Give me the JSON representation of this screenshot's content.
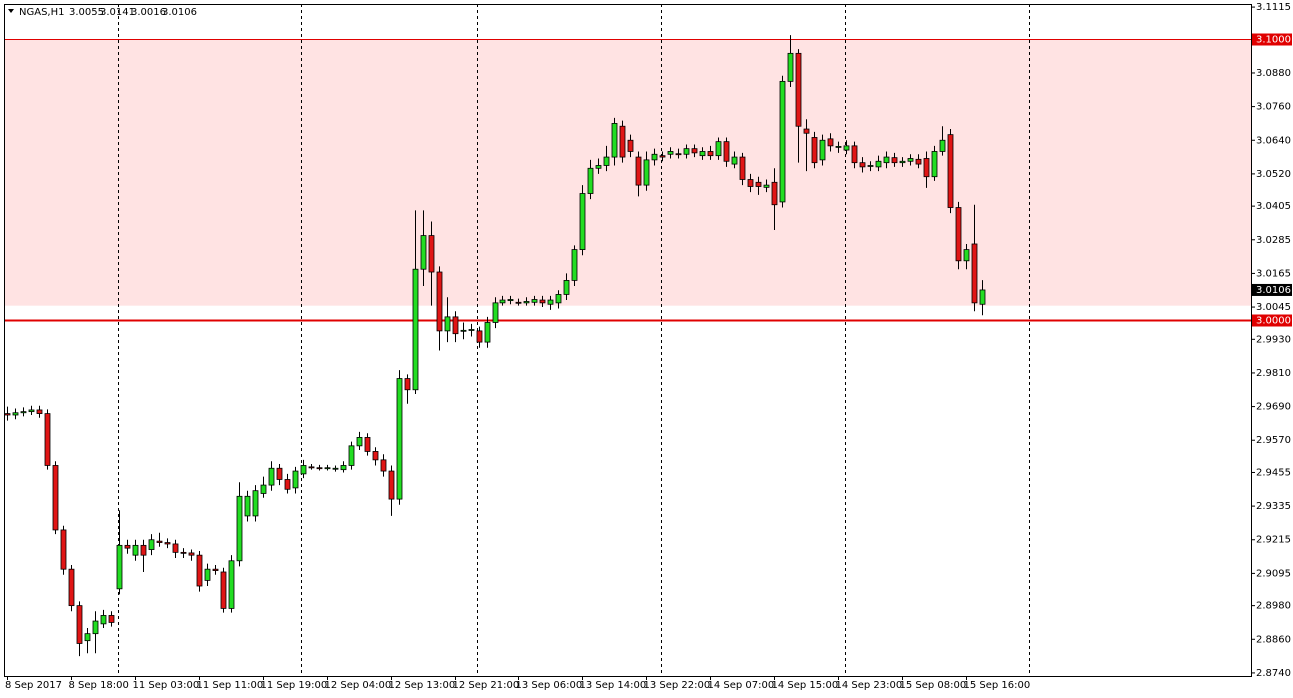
{
  "chart_data": {
    "type": "candlestick",
    "title": "NGAS,H1",
    "up_color": "#22dd22",
    "down_color": "#e01515",
    "zone_color": "#ffe3e3",
    "level_color": "#e00000",
    "ylim": [
      2.8729,
      3.1126
    ],
    "yticks": [
      3.1115,
      {
        "value": 3.088,
        "label": "3.0880"
      },
      {
        "value": 3.076,
        "label": "3.0760"
      },
      {
        "value": 3.064,
        "label": "3.0640"
      },
      {
        "value": 3.052,
        "label": "3.0520"
      },
      3.0405,
      3.0285,
      3.0165,
      3.0045,
      {
        "value": 2.993,
        "label": "2.9930"
      },
      {
        "value": 2.981,
        "label": "2.9810"
      },
      {
        "value": 2.969,
        "label": "2.9690"
      },
      {
        "value": 2.957,
        "label": "2.9570"
      },
      2.9455,
      2.9335,
      2.9215,
      2.9095,
      {
        "value": 2.898,
        "label": "2.8980"
      },
      {
        "value": 2.886,
        "label": "2.8860"
      },
      {
        "value": 2.874,
        "label": "2.8740"
      }
    ],
    "zone": [
      3.005,
      3.1
    ],
    "levels": [
      {
        "value": 3.1,
        "label": "3.1000"
      },
      {
        "value": 3.0,
        "label": "3.0000"
      }
    ],
    "categories": [
      "8 Sep 2017",
      null,
      null,
      null,
      null,
      null,
      null,
      null,
      "8 Sep 18:00",
      null,
      null,
      null,
      null,
      null,
      null,
      null,
      "11 Sep 03:00",
      null,
      null,
      null,
      null,
      null,
      null,
      null,
      "11 Sep 11:00",
      null,
      null,
      null,
      null,
      null,
      null,
      null,
      "11 Sep 19:00",
      null,
      null,
      null,
      null,
      null,
      null,
      null,
      "12 Sep 04:00",
      null,
      null,
      null,
      null,
      null,
      null,
      null,
      "12 Sep 13:00",
      null,
      null,
      null,
      null,
      null,
      null,
      null,
      "12 Sep 21:00",
      null,
      null,
      null,
      null,
      null,
      null,
      null,
      "13 Sep 06:00",
      null,
      null,
      null,
      null,
      null,
      null,
      null,
      "13 Sep 14:00",
      null,
      null,
      null,
      null,
      null,
      null,
      null,
      "13 Sep 22:00",
      null,
      null,
      null,
      null,
      null,
      null,
      null,
      "14 Sep 07:00",
      null,
      null,
      null,
      null,
      null,
      null,
      null,
      "14 Sep 15:00",
      null,
      null,
      null,
      null,
      null,
      null,
      null,
      "14 Sep 23:00",
      null,
      null,
      null,
      null,
      null,
      null,
      null,
      "15 Sep 08:00",
      null,
      null,
      null,
      null,
      null,
      null,
      null,
      "15 Sep 16:00",
      null,
      null
    ],
    "open": [
      2.9665,
      2.966,
      2.9668,
      2.9672,
      2.9678,
      2.9665,
      2.948,
      2.925,
      2.911,
      2.898,
      2.8855,
      2.888,
      2.8915,
      2.8945,
      2.904,
      2.9195,
      2.916,
      2.9195,
      2.918,
      2.921,
      2.9205,
      2.92,
      2.917,
      2.9168,
      2.916,
      2.907,
      2.911,
      2.91,
      2.897,
      2.914,
      2.93,
      2.93,
      2.938,
      2.941,
      2.947,
      2.943,
      2.94,
      2.945,
      2.9475,
      2.9472,
      2.947,
      2.9468,
      2.9465,
      2.948,
      2.955,
      2.958,
      2.953,
      2.95,
      2.946,
      2.936,
      2.979,
      2.975,
      3.018,
      3.03,
      3.017,
      2.996,
      3.001,
      2.996,
      2.9962,
      2.996,
      2.992,
      2.999,
      3.006,
      3.0068,
      3.0062,
      3.006,
      3.0062,
      3.007,
      3.0055,
      3.006,
      3.009,
      3.014,
      3.025,
      3.045,
      3.054,
      3.055,
      3.058,
      3.069,
      3.064,
      3.058,
      3.048,
      3.057,
      3.0585,
      3.059,
      3.0592,
      3.059,
      3.061,
      3.0585,
      3.06,
      3.0585,
      3.0635,
      3.0555,
      3.058,
      3.05,
      3.049,
      3.0472,
      3.049,
      3.042,
      3.085,
      3.095,
      3.068,
      3.065,
      3.057,
      3.0645,
      3.0615,
      3.0605,
      3.062,
      3.056,
      3.0548,
      3.0545,
      3.056,
      3.0578,
      3.056,
      3.0565,
      3.0572,
      3.0575,
      3.051,
      3.06,
      3.066,
      3.04,
      3.021,
      3.027,
      3.0055
    ],
    "high": [
      2.969,
      2.9683,
      2.9687,
      2.9693,
      2.9693,
      2.968,
      2.9495,
      2.9265,
      2.9125,
      2.8995,
      2.89,
      2.896,
      2.8965,
      2.896,
      2.932,
      2.9215,
      2.9215,
      2.9215,
      2.9235,
      2.924,
      2.922,
      2.9215,
      2.9185,
      2.918,
      2.9175,
      2.913,
      2.9125,
      2.9115,
      2.916,
      2.942,
      2.939,
      2.941,
      2.944,
      2.9495,
      2.9485,
      2.945,
      2.9475,
      2.95,
      2.9485,
      2.9482,
      2.9482,
      2.948,
      2.9495,
      2.9565,
      2.96,
      2.9595,
      2.9545,
      2.952,
      2.948,
      2.982,
      2.9805,
      3.039,
      3.039,
      3.035,
      3.019,
      3.008,
      3.003,
      2.999,
      2.9985,
      2.9975,
      3.001,
      3.008,
      3.0085,
      3.0085,
      3.0075,
      3.008,
      3.0085,
      3.0085,
      3.0085,
      3.0105,
      3.0165,
      3.0265,
      3.048,
      3.057,
      3.0575,
      3.062,
      3.072,
      3.071,
      3.066,
      3.06,
      3.06,
      3.061,
      3.06,
      3.0615,
      3.061,
      3.0625,
      3.0625,
      3.0615,
      3.062,
      3.065,
      3.065,
      3.06,
      3.0595,
      3.052,
      3.051,
      3.05,
      3.054,
      3.087,
      3.1015,
      3.0965,
      3.0715,
      3.067,
      3.066,
      3.0665,
      3.0635,
      3.064,
      3.0635,
      3.058,
      3.0565,
      3.0585,
      3.06,
      3.0595,
      3.058,
      3.059,
      3.059,
      3.06,
      3.062,
      3.069,
      3.068,
      3.042,
      3.027,
      3.041,
      3.0141
    ],
    "low": [
      2.964,
      2.9645,
      2.9655,
      2.966,
      2.965,
      2.9465,
      2.9235,
      2.909,
      2.896,
      2.88,
      2.881,
      2.881,
      2.89,
      2.8905,
      2.902,
      2.9165,
      2.914,
      2.91,
      2.916,
      2.919,
      2.9185,
      2.915,
      2.915,
      2.914,
      2.903,
      2.905,
      2.909,
      2.8955,
      2.8955,
      2.912,
      2.928,
      2.928,
      2.9365,
      2.939,
      2.941,
      2.938,
      2.938,
      2.9435,
      2.9465,
      2.9462,
      2.9462,
      2.9458,
      2.9455,
      2.9465,
      2.9535,
      2.9515,
      2.948,
      2.944,
      2.93,
      2.934,
      2.97,
      2.9735,
      3.012,
      3.005,
      2.989,
      2.992,
      2.992,
      2.993,
      2.994,
      2.99,
      2.99,
      2.997,
      3.005,
      3.0055,
      3.005,
      3.005,
      3.005,
      3.0045,
      3.0035,
      3.004,
      3.007,
      3.012,
      3.023,
      3.043,
      3.052,
      3.053,
      3.055,
      3.056,
      3.058,
      3.044,
      3.046,
      3.055,
      3.0565,
      3.0575,
      3.0575,
      3.0575,
      3.058,
      3.057,
      3.057,
      3.057,
      3.0545,
      3.054,
      3.048,
      3.0455,
      3.0445,
      3.0455,
      3.032,
      3.04,
      3.083,
      3.056,
      3.053,
      3.054,
      3.055,
      3.06,
      3.0595,
      3.059,
      3.054,
      3.0525,
      3.053,
      3.053,
      3.054,
      3.0545,
      3.0545,
      3.055,
      3.054,
      3.047,
      3.0495,
      3.0585,
      3.038,
      3.018,
      3.018,
      3.003,
      3.0016
    ],
    "close": [
      2.966,
      2.9668,
      2.9672,
      2.9678,
      2.9665,
      2.948,
      2.925,
      2.911,
      2.898,
      2.8845,
      2.888,
      2.8925,
      2.8945,
      2.892,
      2.9195,
      2.9185,
      2.9195,
      2.916,
      2.9215,
      2.9205,
      2.92,
      2.917,
      2.9168,
      2.916,
      2.905,
      2.911,
      2.9105,
      2.897,
      2.914,
      2.937,
      2.937,
      2.939,
      2.941,
      2.947,
      2.943,
      2.9395,
      2.946,
      2.948,
      2.9472,
      2.947,
      2.9472,
      2.947,
      2.948,
      2.955,
      2.958,
      2.953,
      2.95,
      2.946,
      2.936,
      2.979,
      2.975,
      3.018,
      3.03,
      3.017,
      2.996,
      3.001,
      2.995,
      2.9962,
      2.9965,
      2.992,
      2.999,
      3.006,
      3.007,
      3.0072,
      3.006,
      3.0065,
      3.0072,
      3.006,
      3.007,
      3.009,
      3.014,
      3.025,
      3.045,
      3.054,
      3.055,
      3.058,
      3.07,
      3.058,
      3.06,
      3.048,
      3.057,
      3.059,
      3.058,
      3.06,
      3.059,
      3.061,
      3.0595,
      3.06,
      3.0585,
      3.0635,
      3.0565,
      3.058,
      3.05,
      3.0475,
      3.0475,
      3.048,
      3.041,
      3.085,
      3.095,
      3.069,
      3.0665,
      3.056,
      3.064,
      3.062,
      3.0618,
      3.062,
      3.056,
      3.0545,
      3.055,
      3.0565,
      3.058,
      3.056,
      3.0565,
      3.0575,
      3.0555,
      3.051,
      3.06,
      3.064,
      3.04,
      3.021,
      3.025,
      3.006,
      3.0106
    ]
  }
}
